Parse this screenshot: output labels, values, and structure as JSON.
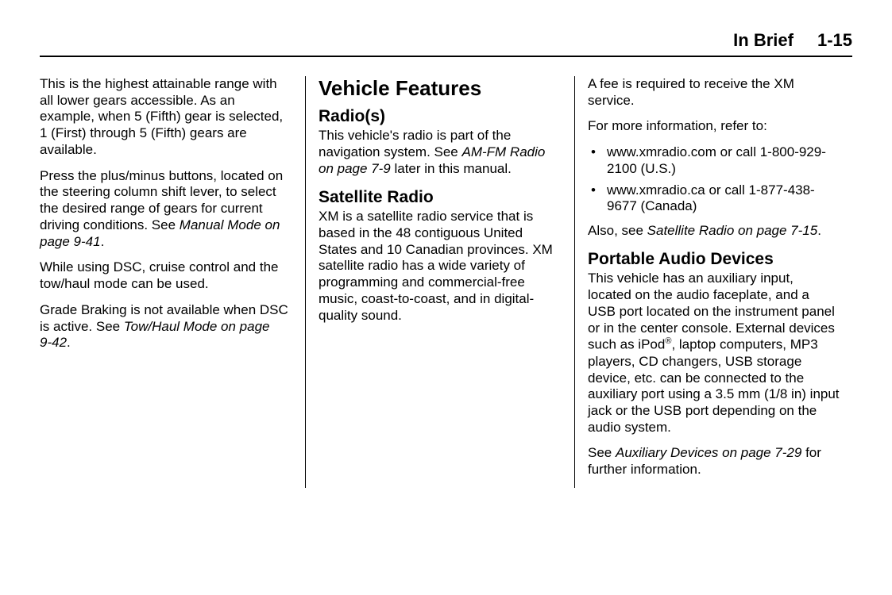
{
  "header": {
    "section": "In Brief",
    "page": "1-15"
  },
  "col1": {
    "p1": "This is the highest attainable range with all lower gears accessible. As an example, when 5 (Fifth) gear is selected, 1 (First) through 5 (Fifth) gears are available.",
    "p2a": "Press the plus/minus buttons, located on the steering column shift lever, to select the desired range of gears for current driving conditions. See ",
    "p2b": "Manual Mode on page 9‑41",
    "p2c": ".",
    "p3": "While using DSC, cruise control and the tow/haul mode can be used.",
    "p4a": "Grade Braking is not available when DSC is active. See ",
    "p4b": "Tow/Haul Mode on page 9‑42",
    "p4c": "."
  },
  "col2": {
    "h1": "Vehicle Features",
    "h2a": "Radio(s)",
    "p1a": "This vehicle's radio is part of the navigation system. See ",
    "p1b": "AM-FM Radio on page 7‑9",
    "p1c": " later in this manual.",
    "h2b": "Satellite Radio",
    "p2": "XM is a satellite radio service that is based in the 48 contiguous United States and 10 Canadian provinces. XM satellite radio has a wide variety of programming and commercial-free music, coast-to-coast, and in digital-quality sound."
  },
  "col3": {
    "p1": "A fee is required to receive the XM service.",
    "p2": "For more information, refer to:",
    "li1": "www.xmradio.com or call 1-800-929-2100 (U.S.)",
    "li2": "www.xmradio.ca or call 1-877-438-9677 (Canada)",
    "p3a": "Also, see ",
    "p3b": "Satellite Radio on page 7‑15",
    "p3c": ".",
    "h2": "Portable Audio Devices",
    "p4a": "This vehicle has an auxiliary input, located on the audio faceplate, and a USB port located on the instrument panel or in the center console. External devices such as iPod",
    "p4sup": "®",
    "p4b": ", laptop computers, MP3 players, CD changers, USB storage device, etc. can be connected to the auxiliary port using a 3.5 mm (1/8 in) input jack or the USB port depending on the audio system.",
    "p5a": "See ",
    "p5b": "Auxiliary Devices on page 7‑29",
    "p5c": " for further information."
  }
}
